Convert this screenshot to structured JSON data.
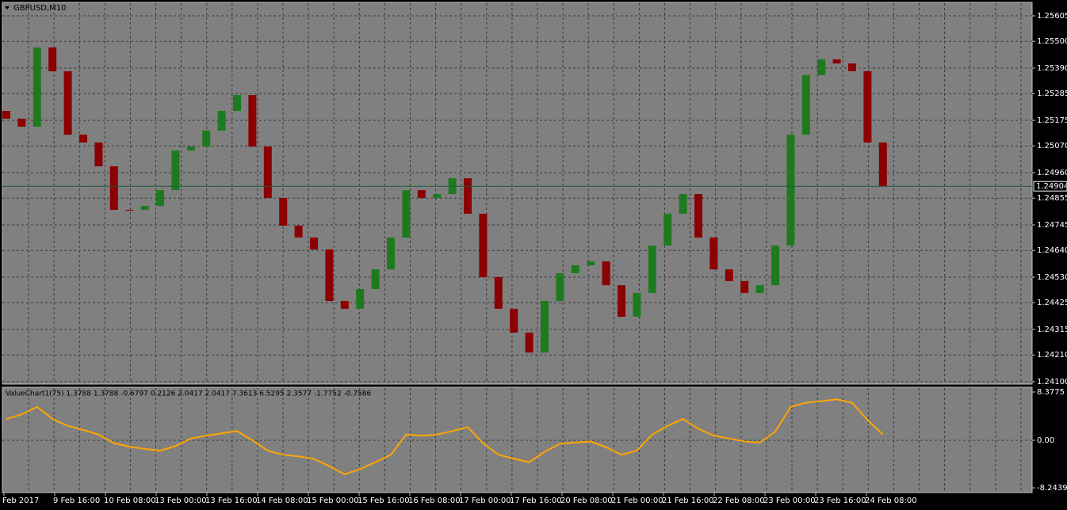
{
  "chart_data": {
    "type": "candlestick",
    "title": "GBPUSD,M10",
    "ylim": [
      1.241,
      1.25605
    ],
    "yticks": [
      {
        "value": 1.25605,
        "label": "1.25605"
      },
      {
        "value": 1.255,
        "label": "1.25500"
      },
      {
        "value": 1.2539,
        "label": "1.25390"
      },
      {
        "value": 1.25285,
        "label": "1.25285"
      },
      {
        "value": 1.25175,
        "label": "1.25175"
      },
      {
        "value": 1.2507,
        "label": "1.25070"
      },
      {
        "value": 1.2496,
        "label": "1.24960"
      },
      {
        "value": 1.24855,
        "label": "1.24855"
      },
      {
        "value": 1.24745,
        "label": "1.24745"
      },
      {
        "value": 1.2464,
        "label": "1.24640"
      },
      {
        "value": 1.2453,
        "label": "1.24530"
      },
      {
        "value": 1.24425,
        "label": "1.24425"
      },
      {
        "value": 1.24315,
        "label": "1.24315"
      },
      {
        "value": 1.2421,
        "label": "1.24210"
      },
      {
        "value": 1.241,
        "label": "1.24100"
      }
    ],
    "current_price": 1.24904,
    "up_color": "#1e7a1e",
    "down_color": "#8b0000",
    "x_labels": [
      "Feb 2017",
      "9 Feb 16:00",
      "10 Feb 08:00",
      "13 Feb 00:00",
      "13 Feb 16:00",
      "14 Feb 08:00",
      "15 Feb 00:00",
      "15 Feb 16:00",
      "16 Feb 08:00",
      "17 Feb 00:00",
      "17 Feb 16:00",
      "20 Feb 08:00",
      "21 Feb 00:00",
      "21 Feb 16:00",
      "22 Feb 08:00",
      "23 Feb 00:00",
      "23 Feb 16:00",
      "24 Feb 08:00"
    ],
    "open": [
      1.25214,
      1.25182,
      1.25149,
      1.25475,
      1.25377,
      1.25116,
      1.25084,
      1.24986,
      1.24807,
      1.24807,
      1.24823,
      1.24888,
      1.25051,
      1.25067,
      1.25133,
      1.25214,
      1.25279,
      1.25067,
      1.24856,
      1.24742,
      1.24693,
      1.24644,
      1.24432,
      1.244,
      1.24481,
      1.24562,
      1.24693,
      1.24888,
      1.24856,
      1.24872,
      1.24937,
      1.24791,
      1.2453,
      1.244,
      1.24302,
      1.2422,
      1.24432,
      1.24546,
      1.24579,
      1.24595,
      1.24497,
      1.24367,
      1.24465,
      1.2466,
      1.24791,
      1.24872,
      1.24693,
      1.24562,
      1.24514,
      1.24465,
      1.24497,
      1.2466,
      1.25116,
      1.25361,
      1.25426,
      1.25409,
      1.25377,
      1.25084
    ],
    "close": [
      1.25182,
      1.25149,
      1.25475,
      1.25377,
      1.25116,
      1.25084,
      1.24986,
      1.24807,
      1.24807,
      1.24823,
      1.24888,
      1.25051,
      1.25067,
      1.25133,
      1.25214,
      1.25279,
      1.25067,
      1.24856,
      1.24742,
      1.24693,
      1.24644,
      1.24432,
      1.244,
      1.24481,
      1.24562,
      1.24693,
      1.24888,
      1.24856,
      1.24872,
      1.24937,
      1.24791,
      1.2453,
      1.244,
      1.24302,
      1.2422,
      1.24432,
      1.24546,
      1.24579,
      1.24595,
      1.24497,
      1.24367,
      1.24465,
      1.2466,
      1.24791,
      1.24872,
      1.24693,
      1.24562,
      1.24514,
      1.24465,
      1.24497,
      1.2466,
      1.25116,
      1.25361,
      1.25426,
      1.25409,
      1.25377,
      1.25084,
      1.24904
    ],
    "indicator": {
      "label": "ValueChart1(75) 1.3788 1.3788 -0.6797 0.2126 2.0417 2.0417 7.3613 6.5295 2.3577 -1.7752 -0.7586",
      "color": "#ffa500",
      "ylim": [
        -8.2439,
        8.3775
      ],
      "yticks": [
        8.3775,
        {
          "value": 0,
          "label": "0.00"
        },
        -8.2439
      ],
      "values": [
        3.7,
        4.5,
        5.8,
        3.7,
        2.5,
        1.8,
        1.0,
        -0.5,
        -1.1,
        -1.5,
        -1.8,
        -1.0,
        0.3,
        0.8,
        1.2,
        1.6,
        0.0,
        -1.8,
        -2.5,
        -2.8,
        -3.2,
        -4.5,
        -5.9,
        -5.0,
        -3.8,
        -2.5,
        1.0,
        0.8,
        1.0,
        1.6,
        2.3,
        -0.5,
        -2.5,
        -3.2,
        -3.8,
        -2.0,
        -0.6,
        -0.4,
        -0.2,
        -1.2,
        -2.5,
        -1.8,
        1.0,
        2.5,
        3.7,
        2.0,
        0.8,
        0.3,
        -0.2,
        -0.4,
        1.5,
        5.8,
        6.5,
        6.8,
        7.1,
        6.5,
        3.5,
        1.0
      ]
    }
  }
}
